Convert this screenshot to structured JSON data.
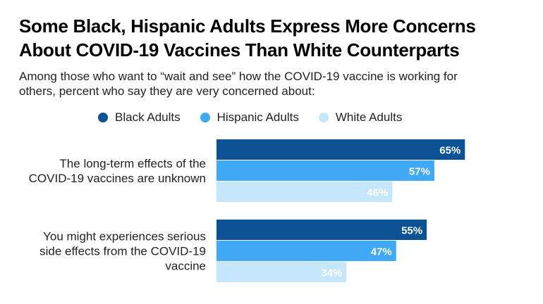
{
  "title_line1": "Some Black, Hispanic Adults Express More Concerns",
  "title_line2": "About COVID-19 Vaccines Than White Counterparts",
  "subtitle_line1": "Among those who want to “wait and see” how the COVID-19 vaccine is working for",
  "subtitle_line2": "others, percent who say they are very concerned about:",
  "chart_data": {
    "type": "bar",
    "orientation": "horizontal",
    "categories": [
      [
        "The long-term effects of the",
        "COVID-19 vaccines are unknown"
      ],
      [
        "You might experiences serious",
        "side effects from the COVID-19",
        "vaccine"
      ]
    ],
    "series": [
      {
        "name": "Black Adults",
        "color": "#0b5394",
        "label_color": "#ffffff",
        "values": [
          65,
          55
        ]
      },
      {
        "name": "Hispanic Adults",
        "color": "#3fa9f5",
        "label_color": "#ffffff",
        "values": [
          57,
          47
        ]
      },
      {
        "name": "White Adults",
        "color": "#c6e6fb",
        "label_color": "#ffffff",
        "values": [
          46,
          34
        ]
      }
    ],
    "value_suffix": "%",
    "xlim": [
      0,
      100
    ],
    "grid": false,
    "legend": "top"
  }
}
